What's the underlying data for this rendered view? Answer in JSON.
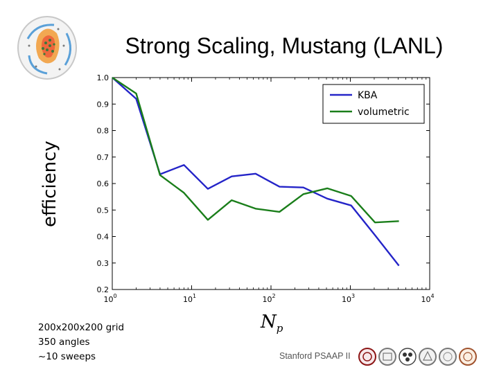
{
  "slide": {
    "title": "Strong Scaling, Mustang (LANL)",
    "notes": [
      "200x200x200 grid",
      "350 angles",
      "~10 sweeps"
    ],
    "footer": "Stanford PSAAP II",
    "seal_count": 6
  },
  "chart_data": {
    "type": "line",
    "xlabel_base": "N",
    "xlabel_sub": "p",
    "ylabel": "efficiency",
    "xscale": "log",
    "xlim": [
      1,
      10000
    ],
    "ylim": [
      0.2,
      1.0
    ],
    "x_ticks": [
      {
        "value": 1,
        "base": "10",
        "exp": "0"
      },
      {
        "value": 10,
        "base": "10",
        "exp": "1"
      },
      {
        "value": 100,
        "base": "10",
        "exp": "2"
      },
      {
        "value": 1000,
        "base": "10",
        "exp": "3"
      },
      {
        "value": 10000,
        "base": "10",
        "exp": "4"
      }
    ],
    "y_ticks": [
      0.2,
      0.3,
      0.4,
      0.5,
      0.6,
      0.7,
      0.8,
      0.9,
      1.0
    ],
    "y_tick_labels": [
      "0.2",
      "0.3",
      "0.4",
      "0.5",
      "0.6",
      "0.7",
      "0.8",
      "0.9",
      "1.0"
    ],
    "grid": false,
    "legend_position": "top-right",
    "x": [
      1,
      2,
      4,
      8,
      16,
      32,
      64,
      128,
      256,
      512,
      1024,
      2048,
      4096
    ],
    "series": [
      {
        "name": "KBA",
        "color": "#2424c8",
        "values": [
          1.0,
          0.92,
          0.635,
          0.67,
          0.58,
          0.627,
          0.637,
          0.588,
          0.585,
          0.543,
          0.517,
          0.405,
          0.29
        ]
      },
      {
        "name": "volumetric",
        "color": "#1a7e1a",
        "values": [
          1.0,
          0.94,
          0.632,
          0.565,
          0.463,
          0.537,
          0.505,
          0.493,
          0.56,
          0.582,
          0.553,
          0.453,
          0.458
        ]
      }
    ]
  }
}
